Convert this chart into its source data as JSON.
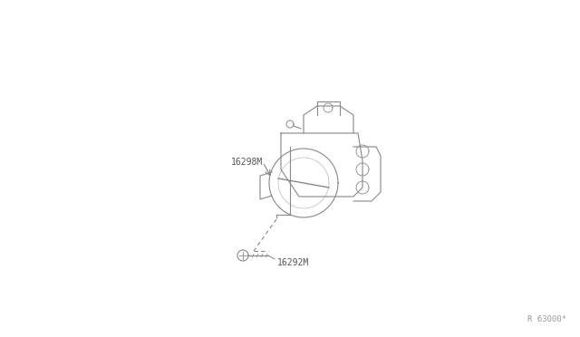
{
  "bg_color": "#ffffff",
  "line_color": "#888888",
  "text_color": "#555555",
  "label_16298M": "16298M",
  "label_16292M": "16292M",
  "ref_code": "R 63000*",
  "fig_width": 6.4,
  "fig_height": 3.72,
  "dpi": 100
}
